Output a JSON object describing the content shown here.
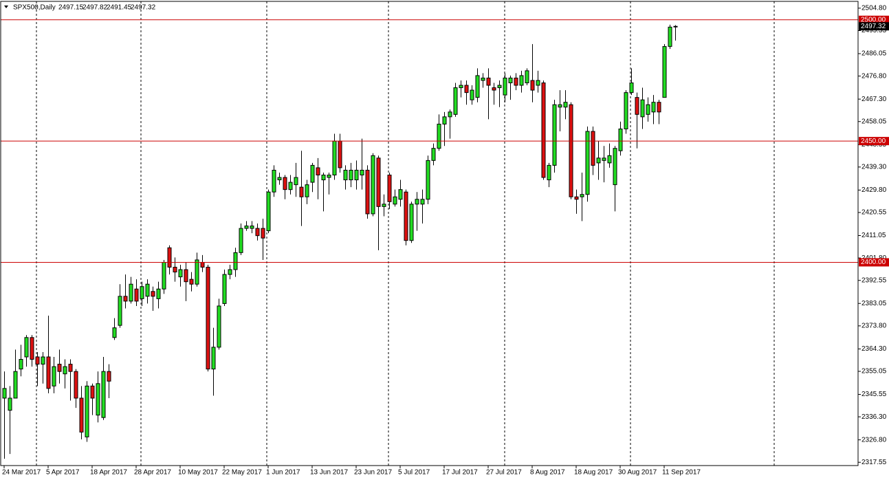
{
  "chart_data": {
    "type": "candlestick",
    "title": "SPX500,Daily",
    "categories": [
      "24 Mar 2017",
      null,
      null,
      null,
      null,
      null,
      null,
      null,
      "5 Apr 2017",
      null,
      null,
      null,
      null,
      null,
      null,
      null,
      "18 Apr 2017",
      null,
      null,
      null,
      null,
      null,
      null,
      null,
      "28 Apr 2017",
      null,
      null,
      null,
      null,
      null,
      null,
      null,
      "10 May 2017",
      null,
      null,
      null,
      null,
      null,
      null,
      null,
      "22 May 2017",
      null,
      null,
      null,
      null,
      null,
      null,
      null,
      "1 Jun 2017",
      null,
      null,
      null,
      null,
      null,
      null,
      null,
      "13 Jun 2017",
      null,
      null,
      null,
      null,
      null,
      null,
      null,
      "23 Jun 2017",
      null,
      null,
      null,
      null,
      null,
      null,
      null,
      "5 Jul 2017",
      null,
      null,
      null,
      null,
      null,
      null,
      null,
      "17 Jul 2017",
      null,
      null,
      null,
      null,
      null,
      null,
      null,
      "27 Jul 2017",
      null,
      null,
      null,
      null,
      null,
      null,
      null,
      "8 Aug 2017",
      null,
      null,
      null,
      null,
      null,
      null,
      null,
      "18 Aug 2017",
      null,
      null,
      null,
      null,
      null,
      null,
      null,
      "30 Aug 2017",
      null,
      null,
      null,
      null,
      null,
      null,
      null,
      "11 Sep 2017",
      null,
      null
    ],
    "open": [
      2344,
      2339,
      2344,
      2356,
      2361,
      2369,
      2361,
      2358,
      2361,
      2349,
      2358,
      2354,
      2358,
      2355,
      2344,
      2328,
      2349,
      2337,
      2336,
      2355,
      2369,
      2374,
      2386,
      2384,
      2389,
      2385,
      2386,
      2388,
      2385,
      2389,
      2406,
      2398,
      2394,
      2397,
      2393,
      2391,
      2400,
      2398,
      2356,
      2365,
      2383,
      2395,
      2397,
      2404,
      2414,
      2414,
      2414,
      2414,
      2413,
      2429,
      2434,
      2435,
      2430,
      2432,
      2431,
      2427,
      2433,
      2439,
      2434,
      2435,
      2436,
      2450,
      2434,
      2434,
      2434,
      2436,
      2438,
      2420,
      2443,
      2423,
      2436,
      2424,
      2426,
      2429,
      2409,
      2424,
      2424,
      2426,
      2442,
      2447,
      2457,
      2460,
      2461,
      2472,
      2473,
      2467,
      2468,
      2475,
      2476,
      2472,
      2472,
      2469,
      2474,
      2476,
      2473,
      2474,
      2475,
      2473,
      2474,
      2434,
      2440,
      2464,
      2464,
      2465,
      2427,
      2427,
      2428,
      2454,
      2441,
      2442,
      2441,
      2432,
      2446,
      2455,
      2470,
      2468,
      2460,
      2461,
      2462,
      2466,
      2468,
      2489,
      2497.15
    ],
    "high": [
      2355,
      2349,
      2364,
      2366,
      2370,
      2370,
      2363,
      2363,
      2378,
      2361,
      2364,
      2360,
      2360,
      2356,
      2349,
      2351,
      2350,
      2355,
      2361,
      2358,
      2377,
      2391,
      2395,
      2394,
      2393,
      2392,
      2393,
      2390,
      2392,
      2401,
      2407,
      2402,
      2399,
      2400,
      2396,
      2404,
      2403,
      2399,
      2373,
      2385,
      2397,
      2399,
      2406,
      2416,
      2417,
      2417,
      2416,
      2418,
      2430,
      2440,
      2437,
      2436,
      2436,
      2441,
      2446,
      2434,
      2441,
      2443,
      2437,
      2437,
      2453,
      2453,
      2440,
      2441,
      2442,
      2451,
      2440,
      2445,
      2444,
      2428,
      2437,
      2430,
      2434,
      2430,
      2425,
      2429,
      2430,
      2444,
      2449,
      2461,
      2462,
      2463,
      2474,
      2475,
      2475,
      2473,
      2480,
      2478,
      2480,
      2474,
      2475,
      2478,
      2477,
      2478,
      2479,
      2480,
      2490,
      2479,
      2475,
      2441,
      2467,
      2471,
      2471,
      2466,
      2430,
      2437,
      2456,
      2456,
      2450,
      2448,
      2449,
      2448,
      2458,
      2471,
      2480,
      2470,
      2472,
      2468,
      2469,
      2467,
      2490,
      2498,
      2497.82
    ],
    "low": [
      2319,
      2321,
      2344,
      2353,
      2357,
      2357,
      2349,
      2350,
      2346,
      2346,
      2350,
      2348,
      2343,
      2340,
      2327,
      2326,
      2337,
      2334,
      2335,
      2344,
      2368,
      2373,
      2381,
      2383,
      2382,
      2382,
      2383,
      2380,
      2381,
      2387,
      2395,
      2392,
      2390,
      2384,
      2388,
      2390,
      2396,
      2355,
      2345,
      2364,
      2382,
      2393,
      2394,
      2403,
      2413,
      2412,
      2409,
      2401,
      2412,
      2427,
      2432,
      2426,
      2428,
      2427,
      2415,
      2424,
      2429,
      2426,
      2421,
      2428,
      2434,
      2437,
      2430,
      2431,
      2430,
      2430,
      2418,
      2419,
      2405,
      2419,
      2422,
      2423,
      2423,
      2407,
      2408,
      2413,
      2416,
      2424,
      2440,
      2446,
      2448,
      2451,
      2460,
      2468,
      2465,
      2465,
      2466,
      2472,
      2459,
      2465,
      2464,
      2466,
      2467,
      2471,
      2470,
      2473,
      2466,
      2470,
      2434,
      2431,
      2437,
      2454,
      2459,
      2426,
      2420,
      2417,
      2425,
      2436,
      2434,
      2433,
      2439,
      2421,
      2444,
      2453,
      2469,
      2447,
      2455,
      2458,
      2457,
      2457,
      2468,
      2488,
      2491.45
    ],
    "close": [
      2348,
      2344,
      2355,
      2360,
      2369,
      2360,
      2358,
      2361,
      2348,
      2357,
      2355,
      2357,
      2355,
      2344,
      2330,
      2349,
      2344,
      2350,
      2355,
      2351,
      2373,
      2386,
      2384,
      2391,
      2384,
      2390,
      2391,
      2386,
      2389,
      2400,
      2398,
      2396,
      2397,
      2392,
      2391,
      2401,
      2398,
      2356,
      2365,
      2382,
      2395,
      2397,
      2404,
      2414,
      2415,
      2415,
      2411,
      2410,
      2429,
      2438,
      2435,
      2430,
      2433,
      2435,
      2427,
      2432,
      2440,
      2436,
      2436,
      2436,
      2450,
      2439,
      2438,
      2438,
      2438,
      2438,
      2420,
      2444,
      2423,
      2424,
      2425,
      2427,
      2430,
      2409,
      2424,
      2426,
      2426,
      2442,
      2447,
      2457,
      2460,
      2462,
      2472,
      2473,
      2470,
      2471,
      2477,
      2476,
      2473,
      2471,
      2473,
      2476,
      2476,
      2473,
      2477,
      2479,
      2471,
      2475,
      2435,
      2440,
      2465,
      2465,
      2466,
      2427,
      2426,
      2428,
      2454,
      2440,
      2443,
      2443,
      2444,
      2447,
      2455,
      2470,
      2474,
      2461,
      2467,
      2465,
      2466,
      2462,
      2489,
      2497,
      2497.32
    ],
    "up_color": "#22dd22",
    "down_color": "#dd1111",
    "ylim": [
      2316.2,
      2507.6
    ],
    "yticks": [
      {
        "value": 2504.8,
        "label": "2504.80"
      },
      {
        "value": 2495.55,
        "label": "2495.55"
      },
      {
        "value": 2486.05,
        "label": "2486.05"
      },
      {
        "value": 2476.8,
        "label": "2476.80"
      },
      {
        "value": 2467.3,
        "label": "2467.30"
      },
      {
        "value": 2458.05,
        "label": "2458.05"
      },
      {
        "value": 2448.55,
        "label": "2448.55"
      },
      {
        "value": 2439.3,
        "label": "2439.30"
      },
      {
        "value": 2429.8,
        "label": "2429.80"
      },
      {
        "value": 2420.55,
        "label": "2420.55"
      },
      {
        "value": 2411.05,
        "label": "2411.05"
      },
      {
        "value": 2401.8,
        "label": "2401.80"
      },
      {
        "value": 2392.55,
        "label": "2392.55"
      },
      {
        "value": 2383.05,
        "label": "2383.05"
      },
      {
        "value": 2373.8,
        "label": "2373.80"
      },
      {
        "value": 2364.3,
        "label": "2364.30"
      },
      {
        "value": 2355.05,
        "label": "2355.05"
      },
      {
        "value": 2345.55,
        "label": "2345.55"
      },
      {
        "value": 2336.3,
        "label": "2336.30"
      },
      {
        "value": 2326.8,
        "label": "2326.80"
      },
      {
        "value": 2317.55,
        "label": "2317.55"
      }
    ],
    "hlines": [
      {
        "value": 2500,
        "label": "2500.00"
      },
      {
        "value": 2450,
        "label": "2450.00"
      },
      {
        "value": 2400,
        "label": "2400.00"
      }
    ],
    "hline_color": "#cc0000"
  }
}
